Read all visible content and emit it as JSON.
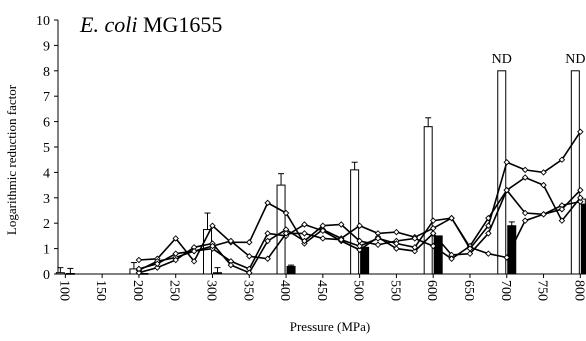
{
  "chart_data": {
    "type": "bar",
    "title_italic": "E. coli",
    "title_rest": " MG1655",
    "xlabel": "Pressure (MPa)",
    "ylabel": "Logarithmic reduction factor",
    "xlim": [
      90,
      805
    ],
    "ylim": [
      0,
      10
    ],
    "x_ticks": [
      100,
      150,
      200,
      250,
      300,
      350,
      400,
      450,
      500,
      550,
      600,
      650,
      700,
      750,
      800
    ],
    "y_ticks": [
      0,
      1,
      2,
      3,
      4,
      5,
      6,
      7,
      8,
      9,
      10
    ],
    "grid": false,
    "legend": "none",
    "bar_series": [
      {
        "name": "",
        "fill": "#ffffff",
        "bars": [
          {
            "x": 100,
            "value": 0.05,
            "error": 0.2
          },
          {
            "x": 200,
            "value": 0.2,
            "error": 0.25
          },
          {
            "x": 300,
            "value": 1.75,
            "error": 0.65
          },
          {
            "x": 400,
            "value": 3.5,
            "error": 0.45
          },
          {
            "x": 500,
            "value": 4.1,
            "error": 0.3
          },
          {
            "x": 600,
            "value": 5.8,
            "error": 0.35
          },
          {
            "x": 700,
            "value": 8.0,
            "error": 0
          },
          {
            "x": 800,
            "value": 8.0,
            "error": 0
          }
        ]
      },
      {
        "name": "",
        "fill": "#000000",
        "bars": [
          {
            "x": 100,
            "value": 0.02,
            "error": 0.2
          },
          {
            "x": 200,
            "value": 0.02,
            "error": 0
          },
          {
            "x": 300,
            "value": 0.05,
            "error": 0.2
          },
          {
            "x": 400,
            "value": 0.3,
            "error": 0.05
          },
          {
            "x": 500,
            "value": 1.05,
            "error": 0
          },
          {
            "x": 600,
            "value": 1.5,
            "error": 0
          },
          {
            "x": 700,
            "value": 1.9,
            "error": 0.15
          },
          {
            "x": 800,
            "value": 2.75,
            "error": 0.2
          }
        ]
      }
    ],
    "line_series": [
      {
        "name": "",
        "color": "#000000",
        "marker": "diamond",
        "points": [
          [
            200,
            0.55
          ],
          [
            225,
            0.6
          ],
          [
            250,
            1.4
          ],
          [
            275,
            0.5
          ],
          [
            300,
            1.9
          ],
          [
            325,
            1.25
          ],
          [
            350,
            1.25
          ],
          [
            375,
            2.8
          ],
          [
            400,
            2.4
          ],
          [
            425,
            1.2
          ],
          [
            450,
            1.75
          ],
          [
            475,
            1.4
          ],
          [
            500,
            1.9
          ],
          [
            525,
            1.6
          ],
          [
            550,
            1.65
          ],
          [
            575,
            1.45
          ],
          [
            600,
            1.8
          ],
          [
            625,
            2.2
          ],
          [
            650,
            1.05
          ],
          [
            675,
            0.8
          ],
          [
            700,
            0.65
          ],
          [
            725,
            2.1
          ],
          [
            750,
            2.35
          ],
          [
            775,
            2.7
          ],
          [
            800,
            2.85
          ]
        ]
      },
      {
        "name": "",
        "color": "#000000",
        "marker": "diamond",
        "points": [
          [
            200,
            0.15
          ],
          [
            225,
            0.5
          ],
          [
            250,
            0.65
          ],
          [
            275,
            0.9
          ],
          [
            300,
            1.0
          ],
          [
            325,
            0.5
          ],
          [
            350,
            0.2
          ],
          [
            375,
            1.6
          ],
          [
            400,
            1.5
          ],
          [
            425,
            1.95
          ],
          [
            450,
            1.7
          ],
          [
            475,
            1.3
          ],
          [
            500,
            0.95
          ],
          [
            525,
            1.45
          ],
          [
            550,
            1.0
          ],
          [
            575,
            0.9
          ],
          [
            600,
            1.6
          ],
          [
            625,
            0.75
          ],
          [
            650,
            0.8
          ],
          [
            675,
            1.6
          ],
          [
            700,
            3.3
          ],
          [
            725,
            2.4
          ],
          [
            750,
            2.35
          ],
          [
            775,
            2.55
          ],
          [
            800,
            3.3
          ]
        ]
      },
      {
        "name": "",
        "color": "#000000",
        "marker": "diamond",
        "points": [
          [
            200,
            0.05
          ],
          [
            225,
            0.25
          ],
          [
            250,
            0.55
          ],
          [
            275,
            1.05
          ],
          [
            300,
            1.2
          ],
          [
            325,
            0.35
          ],
          [
            350,
            0.05
          ],
          [
            375,
            1.3
          ],
          [
            400,
            1.75
          ],
          [
            425,
            1.3
          ],
          [
            450,
            1.9
          ],
          [
            475,
            1.95
          ],
          [
            500,
            1.3
          ],
          [
            525,
            1.15
          ],
          [
            550,
            1.3
          ],
          [
            575,
            1.4
          ],
          [
            600,
            1.1
          ],
          [
            625,
            0.6
          ],
          [
            650,
            1.1
          ],
          [
            675,
            2.2
          ],
          [
            700,
            3.3
          ],
          [
            725,
            3.8
          ],
          [
            750,
            3.5
          ],
          [
            775,
            2.1
          ],
          [
            800,
            3.0
          ]
        ]
      },
      {
        "name": "",
        "color": "#000000",
        "marker": "diamond",
        "points": [
          [
            200,
            0.2
          ],
          [
            225,
            0.4
          ],
          [
            250,
            0.8
          ],
          [
            275,
            0.9
          ],
          [
            300,
            1.1
          ],
          [
            325,
            1.3
          ],
          [
            350,
            0.7
          ],
          [
            375,
            0.6
          ],
          [
            400,
            1.6
          ],
          [
            425,
            1.6
          ],
          [
            450,
            1.4
          ],
          [
            475,
            1.35
          ],
          [
            500,
            1.1
          ],
          [
            525,
            1.4
          ],
          [
            550,
            1.2
          ],
          [
            575,
            1.05
          ],
          [
            600,
            2.1
          ],
          [
            625,
            2.2
          ],
          [
            650,
            1.0
          ],
          [
            675,
            1.9
          ],
          [
            700,
            4.4
          ],
          [
            725,
            4.1
          ],
          [
            750,
            4.0
          ],
          [
            775,
            4.5
          ],
          [
            800,
            5.6
          ]
        ]
      }
    ],
    "annotations": [
      {
        "x": 700,
        "y": 8.0,
        "text": "ND"
      },
      {
        "x": 800,
        "y": 8.0,
        "text": "ND"
      }
    ]
  }
}
